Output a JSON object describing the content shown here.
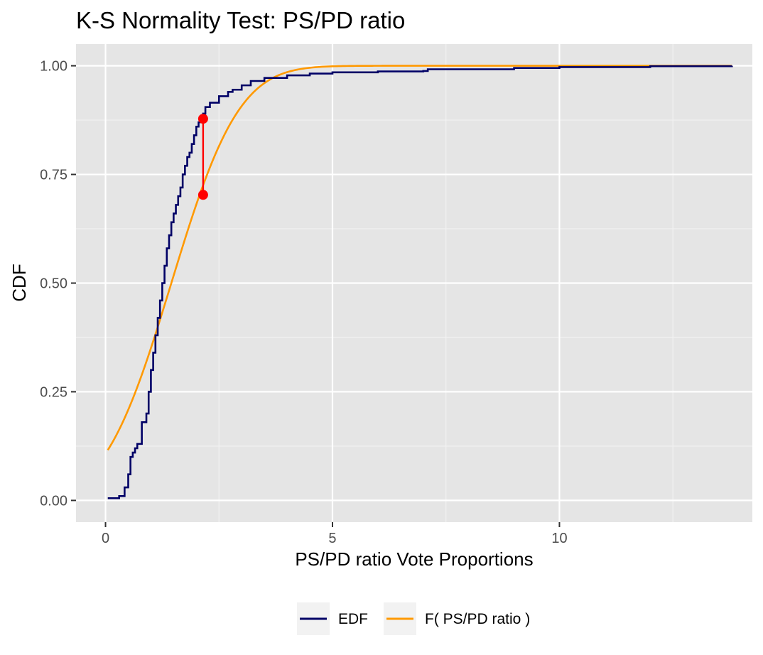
{
  "chart_data": {
    "type": "line",
    "title": "K-S Normality Test:  PS/PD ratio",
    "xlabel": "PS/PD ratio  Vote Proportions",
    "ylabel": "CDF",
    "xlim": [
      -0.65,
      14.25
    ],
    "ylim": [
      -0.05,
      1.05
    ],
    "x_ticks": [
      0,
      5,
      10
    ],
    "x_tick_labels": [
      "0",
      "5",
      "10"
    ],
    "y_ticks": [
      0,
      0.25,
      0.5,
      0.75,
      1
    ],
    "y_tick_labels": [
      "0.00",
      "0.25",
      "0.50",
      "0.75",
      "1.00"
    ],
    "grid": true,
    "legend_position": "bottom",
    "series": [
      {
        "name": "EDF",
        "color": "#000066",
        "x": [
          0.05,
          0.3,
          0.42,
          0.5,
          0.55,
          0.6,
          0.65,
          0.7,
          0.8,
          0.9,
          0.95,
          1.0,
          1.05,
          1.1,
          1.15,
          1.2,
          1.25,
          1.3,
          1.35,
          1.4,
          1.45,
          1.5,
          1.55,
          1.6,
          1.65,
          1.7,
          1.75,
          1.8,
          1.85,
          1.9,
          1.95,
          2.0,
          2.05,
          2.1,
          2.15,
          2.2,
          2.3,
          2.5,
          2.7,
          2.8,
          3.0,
          3.2,
          3.5,
          4.0,
          4.5,
          5.0,
          6.0,
          7.0,
          7.1,
          9.0,
          10.0,
          12.0,
          13.8
        ],
        "y": [
          0.005,
          0.01,
          0.03,
          0.06,
          0.1,
          0.11,
          0.12,
          0.13,
          0.18,
          0.2,
          0.25,
          0.3,
          0.34,
          0.38,
          0.42,
          0.46,
          0.5,
          0.54,
          0.58,
          0.61,
          0.64,
          0.66,
          0.68,
          0.7,
          0.72,
          0.75,
          0.77,
          0.79,
          0.8,
          0.82,
          0.84,
          0.86,
          0.87,
          0.878,
          0.89,
          0.905,
          0.915,
          0.93,
          0.94,
          0.945,
          0.955,
          0.965,
          0.972,
          0.978,
          0.982,
          0.985,
          0.987,
          0.988,
          0.992,
          0.995,
          0.997,
          0.999,
          1.0
        ]
      },
      {
        "name": "F( PS/PD ratio )",
        "color": "#FF9900",
        "dist": "normal",
        "mean": 1.45,
        "sd": 1.17,
        "x_range": [
          0.05,
          13.8
        ]
      }
    ],
    "ks_statistic": {
      "color": "#FF0000",
      "x": 2.15,
      "y_edf": 0.878,
      "y_cdf": 0.703
    }
  }
}
